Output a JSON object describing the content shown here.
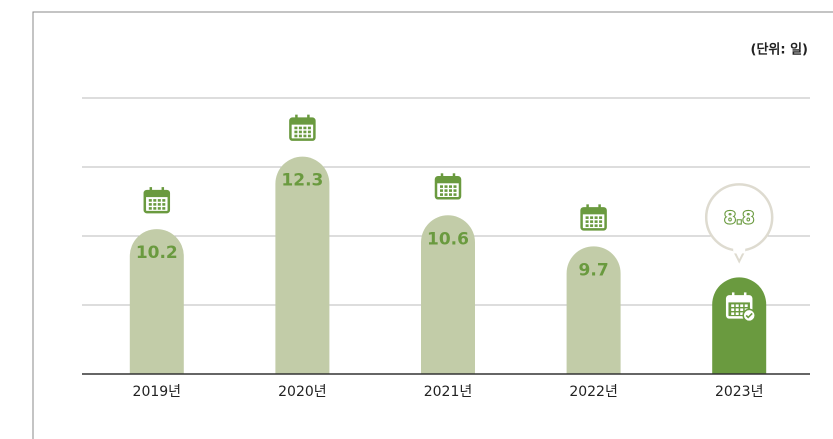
{
  "chart_data": {
    "type": "bar",
    "unit_label": "(단위: 일)",
    "categories": [
      "2019년",
      "2020년",
      "2021년",
      "2022년",
      "2023년"
    ],
    "values": [
      10.2,
      12.3,
      10.6,
      9.7,
      8.8
    ],
    "colors": [
      "#c2cca8",
      "#c2cca8",
      "#c2cca8",
      "#c2cca8",
      "#6a9a3f"
    ],
    "label_color": "#6a9a3f",
    "ylim": [
      6,
      14
    ],
    "yticks": [
      8,
      10,
      12,
      14
    ],
    "grid": true
  }
}
